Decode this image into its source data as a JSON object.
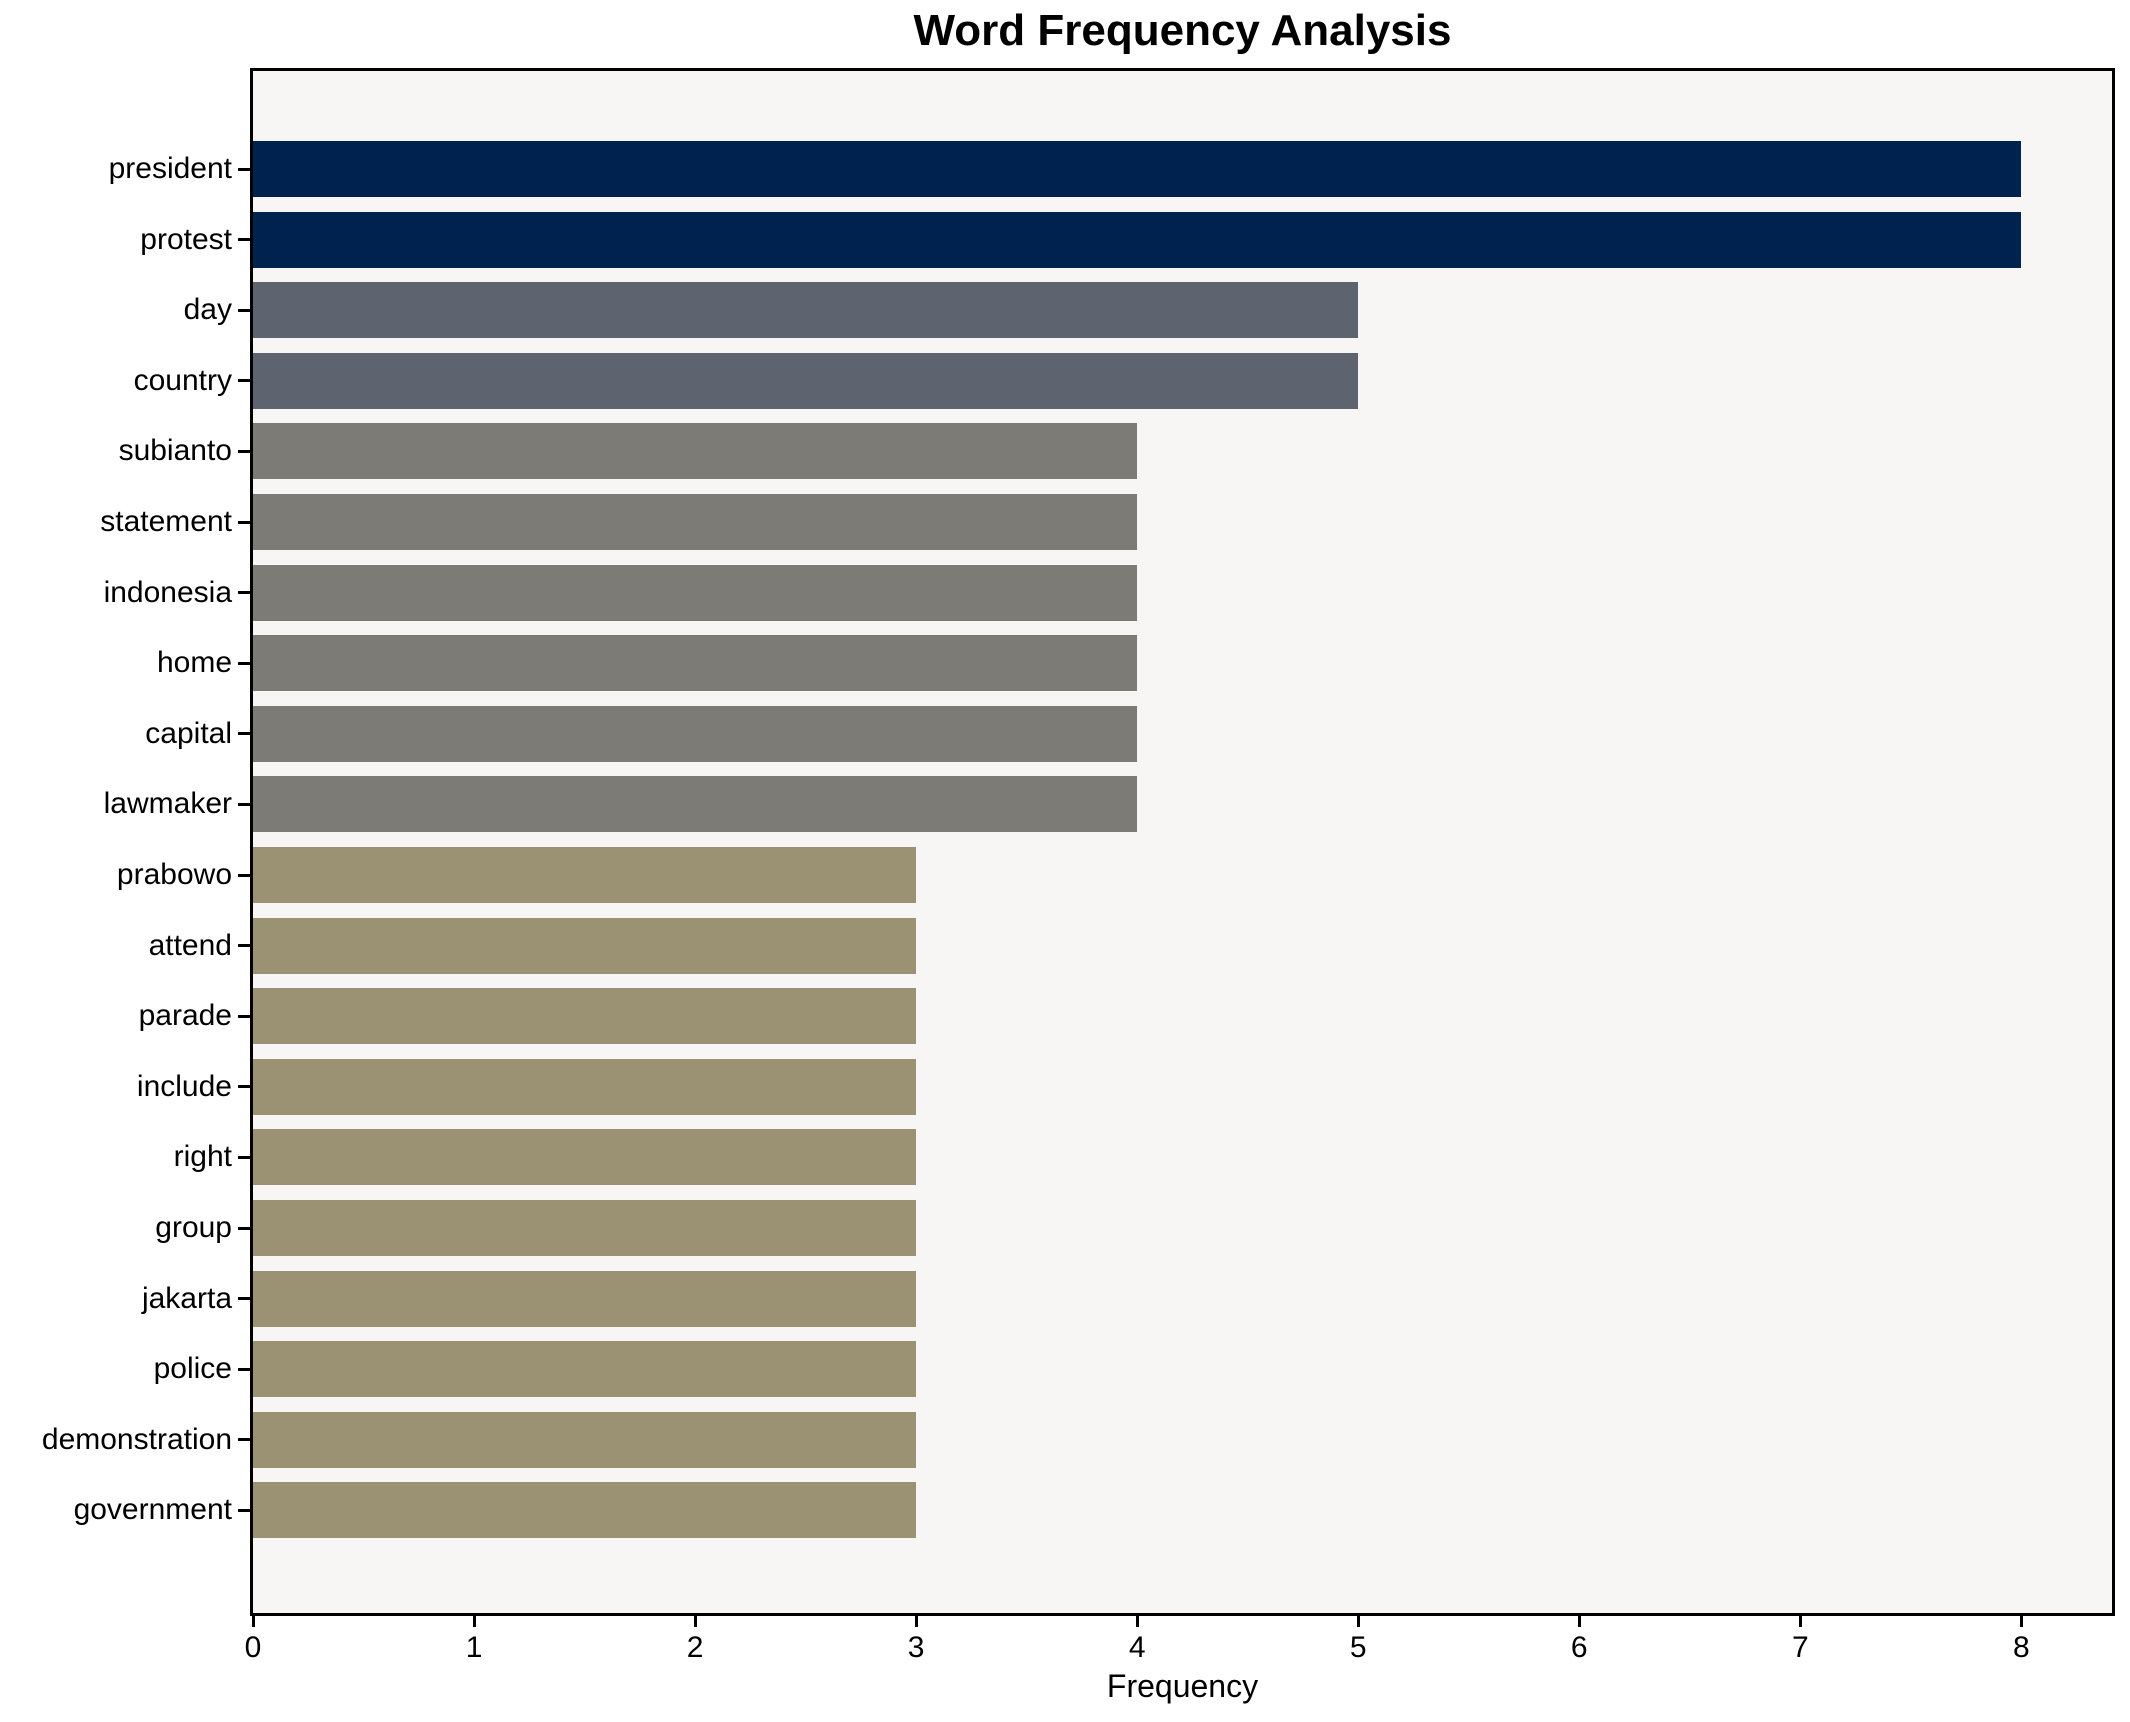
{
  "figure": {
    "background": "#ffffff",
    "plot_background": "#f7f6f4",
    "spine_color": "#000000"
  },
  "chart_data": {
    "type": "bar",
    "orientation": "horizontal",
    "title": "Word Frequency Analysis",
    "xlabel": "Frequency",
    "ylabel": "",
    "grid": false,
    "legend": null,
    "xlim": [
      0,
      8.41
    ],
    "xticks": [
      "0",
      "1",
      "2",
      "3",
      "4",
      "5",
      "6",
      "7",
      "8"
    ],
    "categories": [
      "president",
      "protest",
      "day",
      "country",
      "subianto",
      "statement",
      "indonesia",
      "home",
      "capital",
      "lawmaker",
      "prabowo",
      "attend",
      "parade",
      "include",
      "right",
      "group",
      "jakarta",
      "police",
      "demonstration",
      "government"
    ],
    "values": [
      8,
      8,
      5,
      5,
      4,
      4,
      4,
      4,
      4,
      4,
      3,
      3,
      3,
      3,
      3,
      3,
      3,
      3,
      3,
      3
    ],
    "bar_colors": [
      "#00224e",
      "#00224e",
      "#5d636f",
      "#5d636f",
      "#7c7b75",
      "#7c7b75",
      "#7c7b75",
      "#7c7b75",
      "#7c7b75",
      "#7c7b75",
      "#9a9273",
      "#9a9273",
      "#9a9273",
      "#9a9273",
      "#9a9273",
      "#9a9273",
      "#9a9273",
      "#9a9273",
      "#9a9273",
      "#9a9273"
    ]
  }
}
